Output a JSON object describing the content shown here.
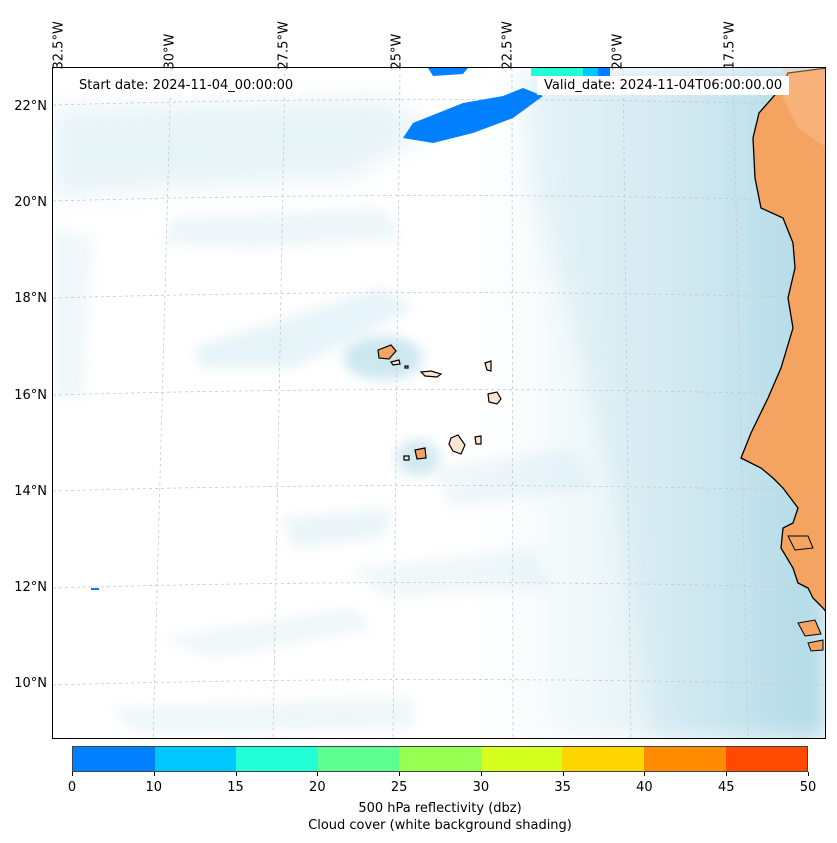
{
  "map": {
    "start_date": "Start date: 2024-11-04_00:00:00",
    "valid_date": "Valid_date: 2024-11-04T06:00:00.00",
    "lat_labels": [
      "22°N",
      "20°N",
      "18°N",
      "16°N",
      "14°N",
      "12°N",
      "10°N"
    ],
    "lon_labels": [
      "32.5°W",
      "30°W",
      "27.5°W",
      "25°W",
      "22.5°W",
      "20°W",
      "17.5°W"
    ],
    "land_color": "#f4a460",
    "cloud_color": "#add8e6"
  },
  "colorbar": {
    "ticks": [
      "0",
      "10",
      "15",
      "20",
      "25",
      "30",
      "35",
      "40",
      "45",
      "50"
    ],
    "colors": [
      "#0080ff",
      "#00c8ff",
      "#22ffd6",
      "#5cff8f",
      "#97ff52",
      "#d4ff1f",
      "#ffd700",
      "#ff8c00",
      "#ff4a00"
    ],
    "label_1": "500 hPa reflectivity (dbz)",
    "label_2": "Cloud cover (white background shading)"
  }
}
